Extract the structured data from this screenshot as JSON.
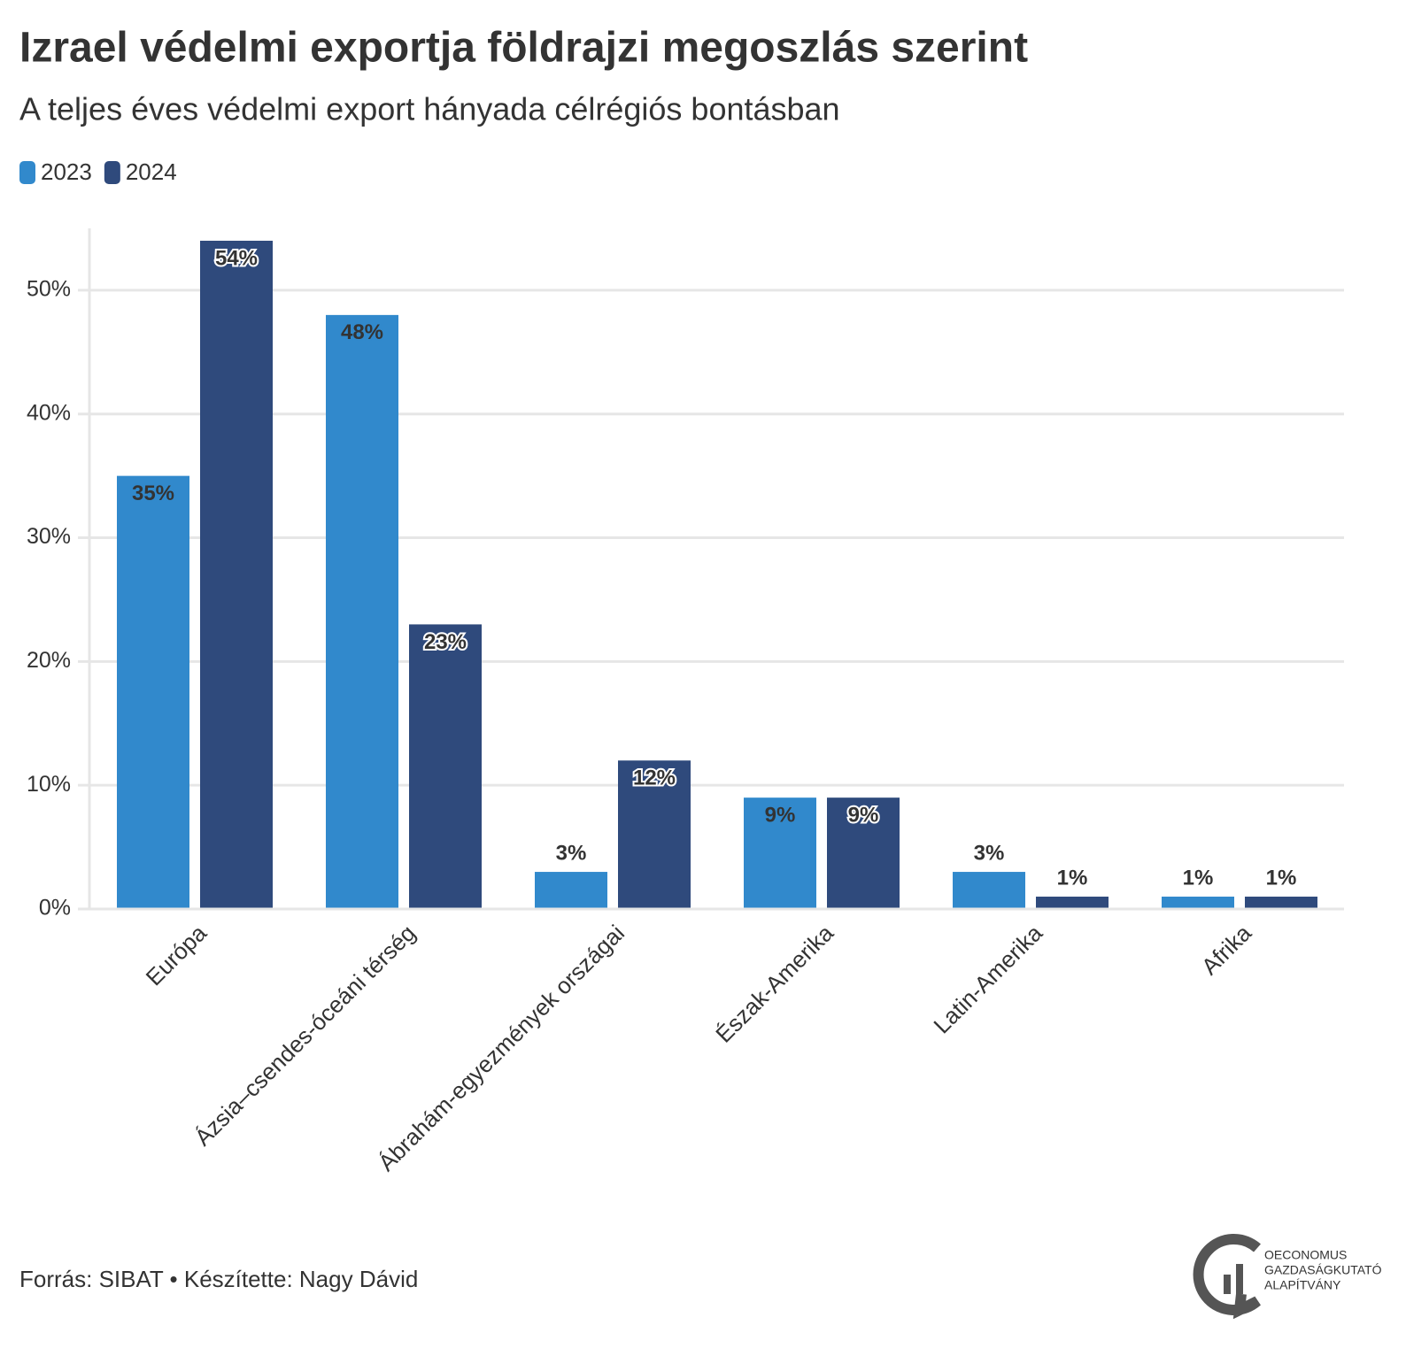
{
  "chart_data": {
    "type": "bar",
    "title": "Izrael védelmi exportja földrajzi megoszlás szerint",
    "subtitle": "A teljes éves védelmi export hányada célrégiós bontásban",
    "categories": [
      "Európa",
      "Ázsia–csendes-óceáni térség",
      "Ábrahám-egyezmények országai",
      "Észak-Amerika",
      "Latin-Amerika",
      "Afrika"
    ],
    "series": [
      {
        "name": "2023",
        "color": "#3189cc",
        "values": [
          35,
          48,
          3,
          9,
          3,
          1
        ],
        "value_labels": [
          "35%",
          "48%",
          "3%",
          "9%",
          "3%",
          "1%"
        ]
      },
      {
        "name": "2024",
        "color": "#2f4a7c",
        "values": [
          54,
          23,
          12,
          9,
          1,
          1
        ],
        "value_labels": [
          "54%",
          "23%",
          "12%",
          "9%",
          "1%",
          "1%"
        ]
      }
    ],
    "ylim": [
      0,
      55
    ],
    "yticks": [
      {
        "value": 0,
        "label": "0%"
      },
      {
        "value": 10,
        "label": "10%"
      },
      {
        "value": 20,
        "label": "20%"
      },
      {
        "value": 30,
        "label": "30%"
      },
      {
        "value": 40,
        "label": "40%"
      },
      {
        "value": 50,
        "label": "50%"
      }
    ],
    "grid": true,
    "legend": "top-left",
    "source": "Forrás: SIBAT • Készítette: Nagy Dávid",
    "logo": [
      "OECONOMUS",
      "GAZDASÁGKUTATÓ",
      "ALAPÍTVÁNY"
    ]
  }
}
